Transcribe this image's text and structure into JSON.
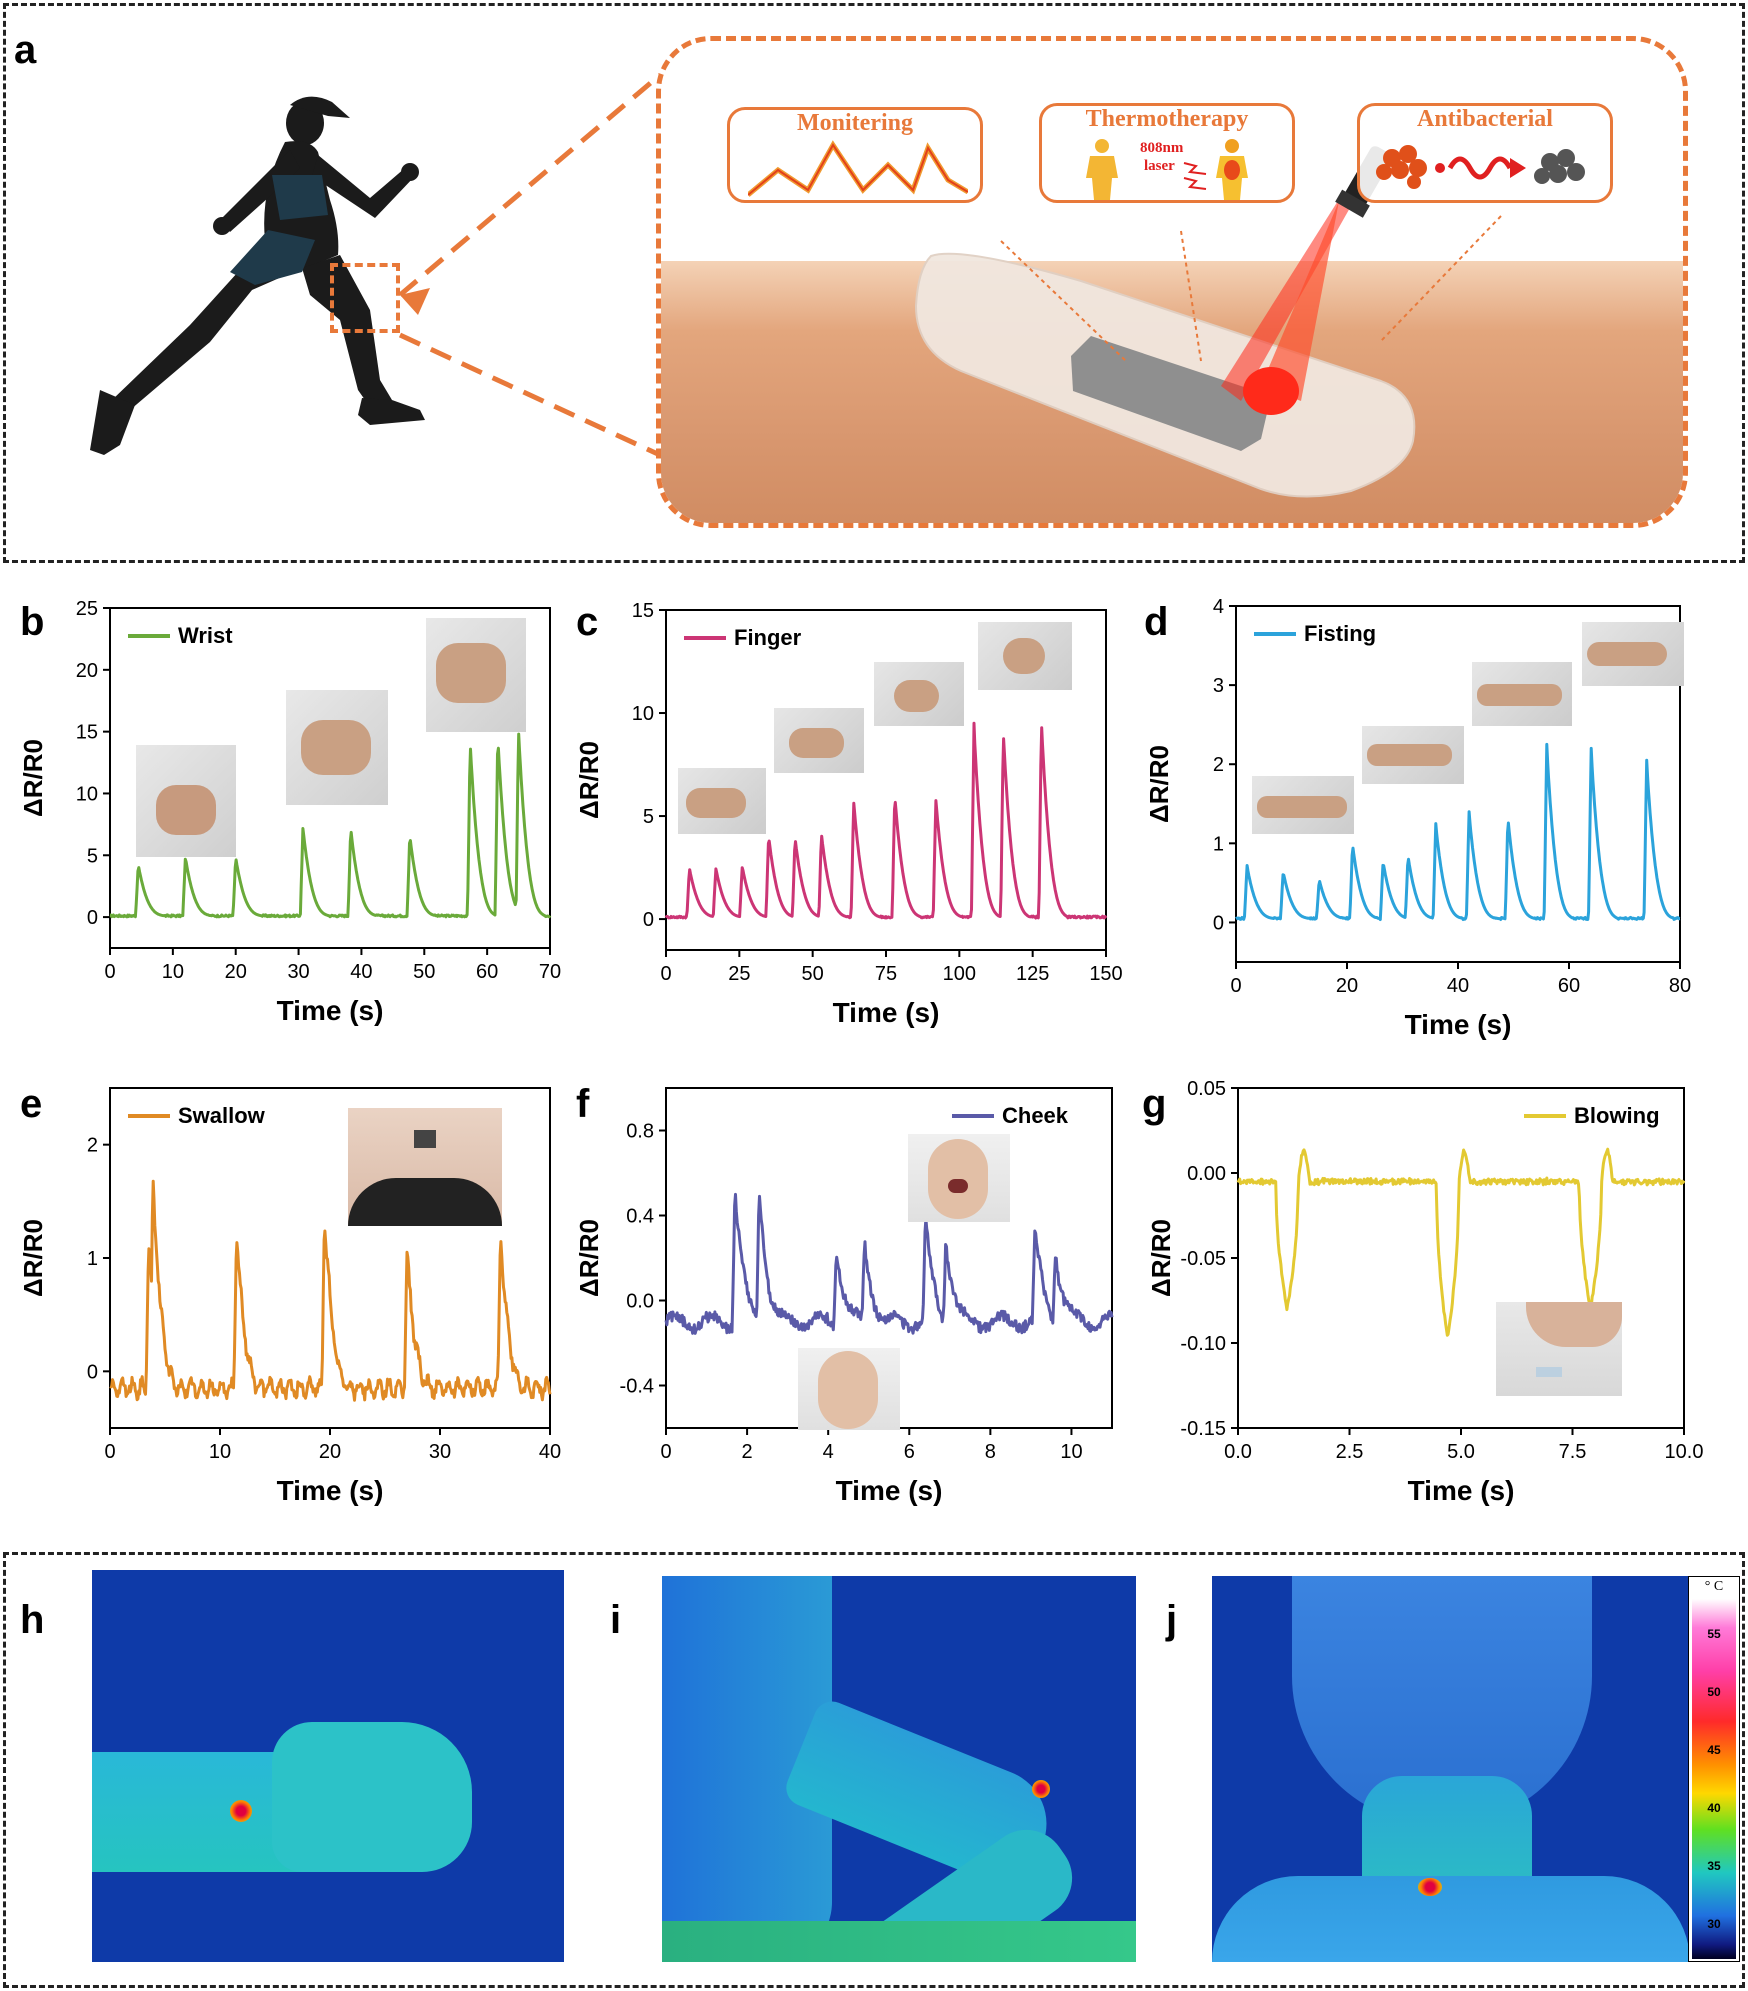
{
  "panel_labels": {
    "a": "a",
    "b": "b",
    "c": "c",
    "d": "d",
    "e": "e",
    "f": "f",
    "g": "g",
    "h": "h",
    "i": "i",
    "j": "j"
  },
  "panel_a": {
    "box_monitoring": "Monitering",
    "box_thermotherapy": "Thermotherapy",
    "laser_label_1": "808nm",
    "laser_label_2": "laser",
    "box_antibacterial": "Antibacterial",
    "colors": {
      "orange": "#e8793a",
      "skin": "#e0a47a",
      "patch": "#8f8f8f",
      "laser": "#ff2a1a"
    }
  },
  "colorbar": {
    "unit": "° C",
    "ticks": [
      "55",
      "50",
      "45",
      "40",
      "35",
      "30"
    ],
    "range": [
      27,
      58
    ]
  },
  "chart_data": [
    {
      "id": "b",
      "type": "line",
      "series": [
        {
          "name": "Wrist",
          "color": "#6aaa3a"
        }
      ],
      "xlabel": "Time (s)",
      "ylabel": "ΔR/R0",
      "xlim": [
        0,
        70
      ],
      "ylim": [
        -2.5,
        25
      ],
      "xticks": [
        "0",
        "10",
        "20",
        "30",
        "40",
        "50",
        "60",
        "70"
      ],
      "yticks": [
        "0",
        "5",
        "10",
        "15",
        "20",
        "25"
      ],
      "peaks": [
        [
          4.5,
          4.3
        ],
        [
          12,
          4.9
        ],
        [
          20,
          4.9
        ],
        [
          30.7,
          7.3
        ],
        [
          38.3,
          7.3
        ],
        [
          47.7,
          6.7
        ],
        [
          57.3,
          14.3
        ],
        [
          61.7,
          14.8
        ],
        [
          65,
          15.3
        ]
      ],
      "baseline": 0.1
    },
    {
      "id": "c",
      "type": "line",
      "series": [
        {
          "name": "Finger",
          "color": "#cc3575"
        }
      ],
      "xlabel": "Time (s)",
      "ylabel": "ΔR/R0",
      "xlim": [
        0,
        150
      ],
      "ylim": [
        -1.5,
        15
      ],
      "xticks": [
        "0",
        "25",
        "50",
        "75",
        "100",
        "125",
        "150"
      ],
      "yticks": [
        "0",
        "5",
        "10",
        "15"
      ],
      "peaks": [
        [
          8,
          2.5
        ],
        [
          17,
          2.5
        ],
        [
          26,
          2.6
        ],
        [
          35,
          4.1
        ],
        [
          44,
          4
        ],
        [
          53,
          4.2
        ],
        [
          64,
          5.8
        ],
        [
          78,
          6.1
        ],
        [
          92,
          5.9
        ],
        [
          105,
          9.5
        ],
        [
          115,
          9.2
        ],
        [
          128,
          9.7
        ]
      ],
      "baseline": 0.1
    },
    {
      "id": "d",
      "type": "line",
      "series": [
        {
          "name": "Fisting",
          "color": "#2ba3db"
        }
      ],
      "xlabel": "Time (s)",
      "ylabel": "ΔR/R0",
      "xlim": [
        0,
        80
      ],
      "ylim": [
        -0.5,
        4
      ],
      "xticks": [
        "0",
        "20",
        "40",
        "60",
        "80"
      ],
      "yticks": [
        "0",
        "1",
        "2",
        "3",
        "4"
      ],
      "peaks": [
        [
          2,
          0.72
        ],
        [
          8.5,
          0.65
        ],
        [
          15,
          0.55
        ],
        [
          21,
          1
        ],
        [
          26.5,
          0.78
        ],
        [
          31,
          0.85
        ],
        [
          36,
          1.25
        ],
        [
          42,
          1.4
        ],
        [
          49,
          1.34
        ],
        [
          56,
          2.25
        ],
        [
          64,
          2.2
        ],
        [
          74,
          2.05
        ]
      ],
      "baseline": 0.05
    },
    {
      "id": "e",
      "type": "line",
      "series": [
        {
          "name": "Swallow",
          "color": "#e08a24"
        }
      ],
      "xlabel": "Time (s)",
      "ylabel": "ΔR/R0",
      "xlim": [
        0,
        40
      ],
      "ylim": [
        -0.5,
        2.5
      ],
      "xticks": [
        "0",
        "10",
        "20",
        "30",
        "40"
      ],
      "yticks": [
        "0",
        "1",
        "2"
      ],
      "peaks": [
        [
          3.5,
          1.15
        ],
        [
          3.9,
          1.75
        ],
        [
          11.5,
          1.28
        ],
        [
          19.5,
          1.42
        ],
        [
          27,
          1.05
        ],
        [
          35.5,
          1.25
        ]
      ],
      "baseline": -0.15
    },
    {
      "id": "f",
      "type": "line",
      "series": [
        {
          "name": "Cheek",
          "color": "#5a5aa8"
        }
      ],
      "xlabel": "Time (s)",
      "ylabel": "ΔR/R0",
      "xlim": [
        0,
        11
      ],
      "ylim": [
        -0.6,
        1.0
      ],
      "xticks": [
        "0",
        "2",
        "4",
        "6",
        "8",
        "10"
      ],
      "yticks": [
        "-0.4",
        "0.0",
        "0.4",
        "0.8"
      ],
      "peaks": [
        [
          1.7,
          0.55
        ],
        [
          2.3,
          0.55
        ],
        [
          4.2,
          0.28
        ],
        [
          4.9,
          0.27
        ],
        [
          6.4,
          0.38
        ],
        [
          6.9,
          0.3
        ],
        [
          9.1,
          0.33
        ],
        [
          9.6,
          0.25
        ]
      ],
      "baseline": -0.1
    },
    {
      "id": "g",
      "type": "line",
      "series": [
        {
          "name": "Blowing",
          "color": "#e3c932"
        }
      ],
      "xlabel": "Time (s)",
      "ylabel": "ΔR/R0",
      "xlim": [
        0,
        10
      ],
      "ylim": [
        -0.15,
        0.05
      ],
      "xticks": [
        "0.0",
        "2.5",
        "5.0",
        "7.5",
        "10.0"
      ],
      "yticks": [
        "-0.15",
        "-0.10",
        "-0.05",
        "0.00",
        "0.05"
      ],
      "dips": [
        [
          1.1,
          -0.08
        ],
        [
          4.7,
          -0.098
        ],
        [
          7.9,
          -0.08
        ]
      ],
      "baseline": -0.005
    }
  ]
}
